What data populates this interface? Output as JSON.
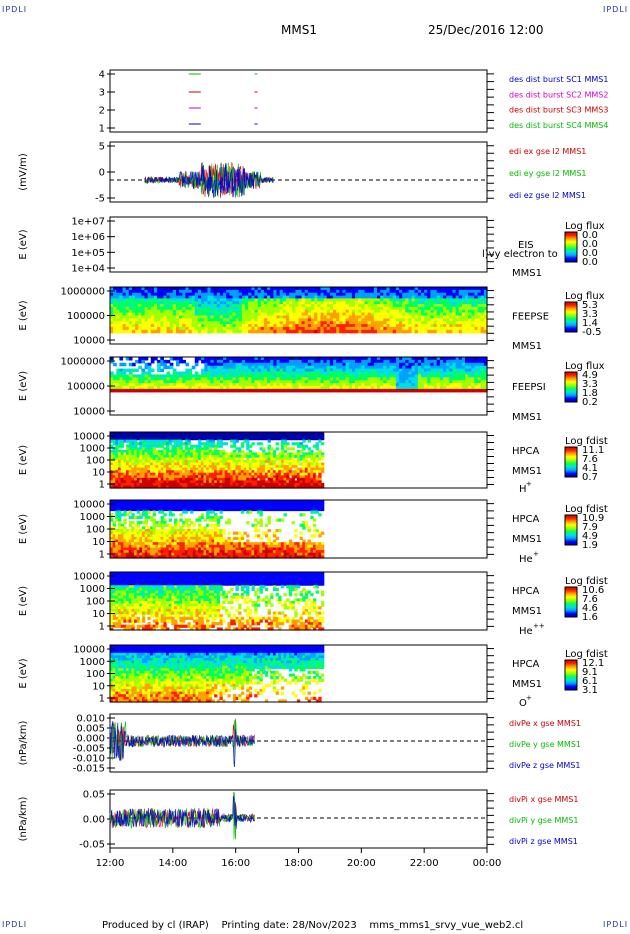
{
  "header": {
    "corner_label": "IPDLI",
    "spacecraft": "MMS1",
    "datetime": "25/Dec/2016 12:00"
  },
  "footer": {
    "text": "Produced by cl (IRAP)    Printing date: 28/Nov/2023    mms_mms1_srvy_vue_web2.cl"
  },
  "chart_data": [
    {
      "type": "scatter",
      "id": "burst",
      "ylabel": "",
      "yticks": [
        "4",
        "3",
        "2",
        "1"
      ],
      "legend": [
        {
          "label": "des dist burst SC1 MMS1",
          "color": "#0000cc"
        },
        {
          "label": "des dist burst SC2 MMS2",
          "color": "#cc00cc"
        },
        {
          "label": "des dist burst SC3 MMS3",
          "color": "#cc0000"
        },
        {
          "label": "des dist burst SC4 MMS4",
          "color": "#00bb00"
        }
      ],
      "x_hours": [
        15.4,
        16.6
      ]
    },
    {
      "type": "line",
      "id": "efield",
      "ylabel": "(mV/m)",
      "ylim": [
        -5,
        10
      ],
      "yticks": [
        "5",
        "0",
        "-5"
      ],
      "legend": [
        {
          "label": "edi ex gse l2 MMS1",
          "color": "#cc0000"
        },
        {
          "label": "edi ey gse l2 MMS1",
          "color": "#00bb00"
        },
        {
          "label": "edi ez gse l2 MMS1",
          "color": "#0000cc"
        }
      ],
      "x_range_hours": [
        13.1,
        17.2
      ]
    },
    {
      "type": "heatmap",
      "id": "eis",
      "ylabel": "E (eV)",
      "yticks": [
        "1e+07",
        "1e+06",
        "1e+05",
        "1e+04"
      ],
      "labels": [
        "EIS",
        "MMS1"
      ],
      "overlay_text": "l)vy electron to",
      "colorbar_title": "Log flux",
      "colorbar_ticks": [
        "0.0",
        "0.0",
        "0.0",
        "0.0"
      ]
    },
    {
      "type": "heatmap",
      "id": "feepse",
      "ylabel": "E (eV)",
      "yticks": [
        "1000000",
        "100000",
        "10000"
      ],
      "labels": [
        "FEEPSE",
        "MMS1"
      ],
      "colorbar_title": "Log flux",
      "colorbar_ticks": [
        "5.3",
        "3.3",
        "1.4",
        "-0.5"
      ]
    },
    {
      "type": "heatmap",
      "id": "feepsi",
      "ylabel": "E (eV)",
      "yticks": [
        "1000000",
        "100000",
        "10000"
      ],
      "labels": [
        "FEEPSI",
        "MMS1"
      ],
      "colorbar_title": "Log flux",
      "colorbar_ticks": [
        "4.9",
        "3.3",
        "1.8",
        "0.2"
      ]
    },
    {
      "type": "heatmap",
      "id": "hpca_h",
      "ylabel": "E (eV)",
      "yticks": [
        "10000",
        "1000",
        "100",
        "10",
        "1"
      ],
      "labels": [
        "HPCA",
        "MMS1"
      ],
      "species": "H",
      "charge": "+",
      "colorbar_title": "Log fdist",
      "colorbar_ticks": [
        "11.1",
        "7.6",
        "4.1",
        "0.7"
      ]
    },
    {
      "type": "heatmap",
      "id": "hpca_he1",
      "ylabel": "E (eV)",
      "yticks": [
        "10000",
        "1000",
        "100",
        "10",
        "1"
      ],
      "labels": [
        "HPCA",
        "MMS1"
      ],
      "species": "He",
      "charge": "+",
      "colorbar_title": "Log fdist",
      "colorbar_ticks": [
        "10.9",
        "7.9",
        "4.9",
        "1.9"
      ]
    },
    {
      "type": "heatmap",
      "id": "hpca_he2",
      "ylabel": "E (eV)",
      "yticks": [
        "10000",
        "1000",
        "100",
        "10",
        "1"
      ],
      "labels": [
        "HPCA",
        "MMS1"
      ],
      "species": "He",
      "charge": "++",
      "colorbar_title": "Log fdist",
      "colorbar_ticks": [
        "10.6",
        "7.6",
        "4.6",
        "1.6"
      ]
    },
    {
      "type": "heatmap",
      "id": "hpca_o",
      "ylabel": "E (eV)",
      "yticks": [
        "10000",
        "1000",
        "100",
        "10",
        "1"
      ],
      "labels": [
        "HPCA",
        "MMS1"
      ],
      "species": "O",
      "charge": "+",
      "colorbar_title": "Log fdist",
      "colorbar_ticks": [
        "12.1",
        "9.1",
        "6.1",
        "3.1"
      ]
    },
    {
      "type": "line",
      "id": "divpe",
      "ylabel": "(nPa/km)",
      "ylim": [
        -0.015,
        0.012
      ],
      "yticks": [
        "0.010",
        "0.005",
        "0.000",
        "-0.005",
        "-0.010",
        "-0.015"
      ],
      "legend": [
        {
          "label": "divPe x gse MMS1",
          "color": "#cc0000"
        },
        {
          "label": "divPe y gse MMS1",
          "color": "#00bb00"
        },
        {
          "label": "divPe z gse MMS1",
          "color": "#0000cc"
        }
      ],
      "x_range_hours": [
        12.0,
        16.6
      ]
    },
    {
      "type": "line",
      "id": "divpi",
      "ylabel": "(nPa/km)",
      "ylim": [
        -0.08,
        0.08
      ],
      "yticks": [
        "0.05",
        "0.00",
        "-0.05"
      ],
      "legend": [
        {
          "label": "divPi x gse MMS1",
          "color": "#cc0000"
        },
        {
          "label": "divPi y gse MMS1",
          "color": "#00bb00"
        },
        {
          "label": "divPi z gse MMS1",
          "color": "#0000cc"
        }
      ],
      "x_range_hours": [
        12.0,
        16.6
      ]
    }
  ],
  "xaxis": {
    "ticks": [
      "12:00",
      "14:00",
      "16:00",
      "18:00",
      "20:00",
      "22:00",
      "00:00"
    ],
    "range_hours": [
      12,
      24
    ]
  }
}
